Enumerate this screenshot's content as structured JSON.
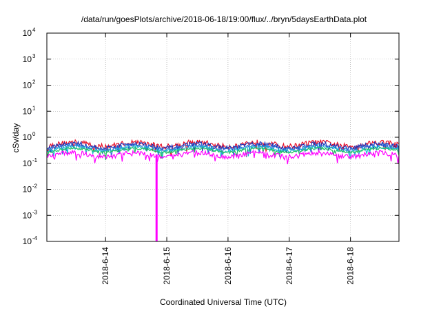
{
  "chart_data": {
    "type": "line",
    "title": "/data/run/goesPlots/archive/2018-06-18/19:00/flux/../bryn/5daysEarthData.plot",
    "xlabel": "Coordinated Universal Time (UTC)",
    "ylabel": "cSv/day",
    "y_scale": "log",
    "ylim": [
      0.0001,
      10000
    ],
    "xlim": [
      "2018-06-13 01:00",
      "2018-06-18 19:00"
    ],
    "grid": true,
    "legend": "none",
    "x_ticks": [
      {
        "label": "2018-6-14",
        "value": "2018-06-14"
      },
      {
        "label": "2018-6-15",
        "value": "2018-06-15"
      },
      {
        "label": "2018-6-16",
        "value": "2018-06-16"
      },
      {
        "label": "2018-6-17",
        "value": "2018-06-17"
      },
      {
        "label": "2018-6-18",
        "value": "2018-06-18"
      }
    ],
    "y_ticks": [
      {
        "base": "10",
        "exp": "4",
        "value": 10000
      },
      {
        "base": "10",
        "exp": "3",
        "value": 1000
      },
      {
        "base": "10",
        "exp": "2",
        "value": 100
      },
      {
        "base": "10",
        "exp": "1",
        "value": 10
      },
      {
        "base": "10",
        "exp": "0",
        "value": 1
      },
      {
        "base": "10",
        "exp": "-1",
        "value": 0.1
      },
      {
        "base": "10",
        "exp": "-2",
        "value": 0.01
      },
      {
        "base": "10",
        "exp": "-3",
        "value": 0.001
      },
      {
        "base": "10",
        "exp": "-4",
        "value": 0.0001
      }
    ],
    "series": [
      {
        "color": "#e8102a",
        "base": 0.55,
        "amp": 0.35
      },
      {
        "color": "#1f2fb5",
        "base": 0.48,
        "amp": 0.3
      },
      {
        "color": "#2f6fd8",
        "base": 0.42,
        "amp": 0.25
      },
      {
        "color": "#18b9d0",
        "base": 0.36,
        "amp": 0.2
      },
      {
        "color": "#20c060",
        "base": 0.32,
        "amp": 0.15
      },
      {
        "color": "#ff00ff",
        "base": 0.22,
        "amp": 0.3
      }
    ],
    "dropout": {
      "x": "2018-06-14 20:00",
      "y": 0.0001,
      "color": "#ff00ff"
    }
  }
}
